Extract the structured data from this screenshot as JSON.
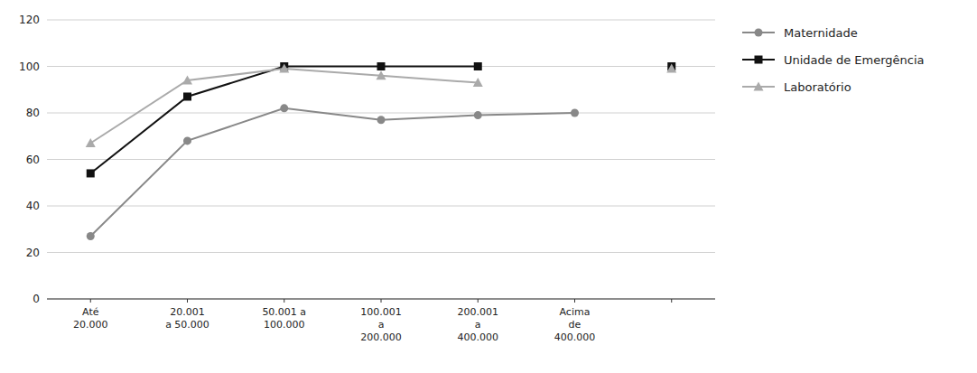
{
  "chart_data": {
    "type": "line",
    "categories": [
      "Até\n20.000",
      "20.001\na 50.000",
      "50.001 a\n100.000",
      "100.001\na\n200.000",
      "200.001\na\n400.000",
      "Acima\nde\n400.000",
      null
    ],
    "series": [
      {
        "name": "Maternidade",
        "color": "#888888",
        "marker": "circle",
        "values": [
          27,
          68,
          82,
          77,
          79,
          80,
          null
        ]
      },
      {
        "name": "Unidade de Emergência",
        "color": "#111111",
        "marker": "square",
        "values": [
          54,
          87,
          100,
          100,
          100,
          null,
          100
        ]
      },
      {
        "name": "Laboratório",
        "color": "#aaaaaa",
        "marker": "triangle",
        "values": [
          67,
          94,
          99,
          96,
          93,
          null,
          99
        ]
      }
    ],
    "ylim": [
      0,
      120
    ],
    "yticks": [
      0,
      20,
      40,
      60,
      80,
      100,
      120
    ],
    "grid": true,
    "legend": "right"
  }
}
